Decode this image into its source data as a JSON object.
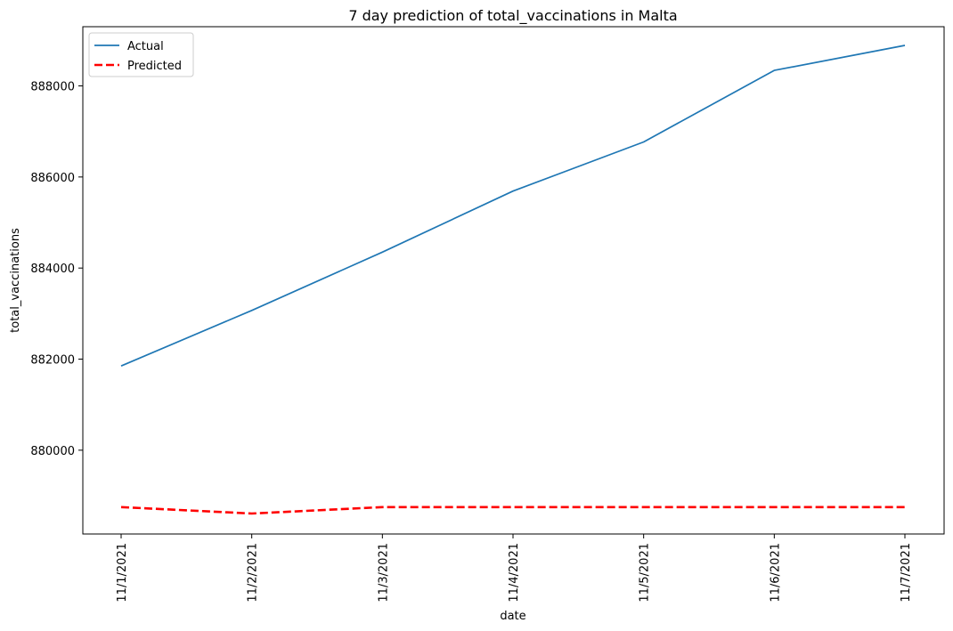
{
  "chart_data": {
    "type": "line",
    "title": "7 day prediction of total_vaccinations in Malta",
    "xlabel": "date",
    "ylabel": "total_vaccinations",
    "categories": [
      "11/1/2021",
      "11/2/2021",
      "11/3/2021",
      "11/4/2021",
      "11/5/2021",
      "11/6/2021",
      "11/7/2021"
    ],
    "yticks": [
      880000,
      882000,
      884000,
      886000,
      888000
    ],
    "ylim": [
      878160,
      889300
    ],
    "legend_position": "top-left",
    "grid": false,
    "series": [
      {
        "name": "Actual",
        "color": "#1f77b4",
        "style": "solid",
        "values": [
          881850,
          883070,
          884350,
          885690,
          886770,
          888340,
          888890
        ]
      },
      {
        "name": "Predicted",
        "color": "#ff0000",
        "style": "dashed",
        "values": [
          878750,
          878610,
          878750,
          878750,
          878750,
          878750,
          878750
        ]
      }
    ]
  }
}
